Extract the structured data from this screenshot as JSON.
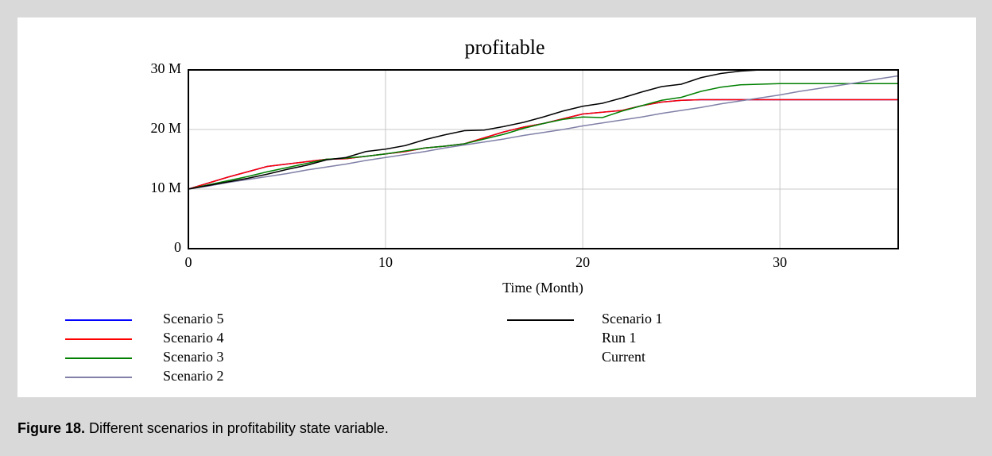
{
  "chart_data": {
    "type": "line",
    "title": "profitable",
    "x_label": "Time (Month)",
    "x": [
      0,
      1,
      2,
      3,
      4,
      5,
      6,
      7,
      8,
      9,
      10,
      11,
      12,
      13,
      14,
      15,
      16,
      17,
      18,
      19,
      20,
      21,
      22,
      23,
      24,
      25,
      26,
      27,
      28,
      29,
      30,
      31,
      32,
      33,
      34,
      35,
      36
    ],
    "xlim": [
      0,
      36
    ],
    "xticks": [
      0,
      10,
      20,
      30
    ],
    "ylim": [
      0,
      30
    ],
    "yticks": [
      0,
      {
        "value": 10,
        "label": "10 M"
      },
      {
        "value": 20,
        "label": "20 M"
      },
      {
        "value": 30,
        "label": "30 M"
      }
    ],
    "grid": true,
    "series": [
      {
        "name": "Scenario 5",
        "color": "#0000ff",
        "values": [
          10,
          11,
          12,
          12.9,
          13.8,
          14.2,
          14.6,
          15,
          15.1,
          15.5,
          15.9,
          16.3,
          16.9,
          17.2,
          17.6,
          18.6,
          19.6,
          20.4,
          21,
          21.8,
          22.6,
          22.9,
          23.2,
          24,
          24.6,
          24.9,
          25,
          25,
          25,
          25,
          25,
          25,
          25,
          25,
          25,
          25,
          25
        ]
      },
      {
        "name": "Scenario 4",
        "color": "#ff0000",
        "values": [
          10,
          11,
          12,
          12.9,
          13.8,
          14.2,
          14.6,
          15,
          15.1,
          15.5,
          15.9,
          16.3,
          16.9,
          17.2,
          17.6,
          18.6,
          19.6,
          20.4,
          21,
          21.8,
          22.6,
          22.9,
          23.2,
          24,
          24.6,
          24.9,
          25,
          25,
          25,
          25,
          25,
          25,
          25,
          25,
          25,
          25,
          25
        ]
      },
      {
        "name": "Scenario 3",
        "color": "#008000",
        "values": [
          10,
          10.7,
          11.4,
          12.1,
          12.9,
          13.6,
          14.3,
          15,
          15.2,
          15.5,
          15.9,
          16.4,
          16.9,
          17.2,
          17.6,
          18.4,
          19.2,
          20.2,
          21,
          21.7,
          22.1,
          22,
          23.1,
          24,
          24.9,
          25.4,
          26.4,
          27.1,
          27.5,
          27.6,
          27.7,
          27.7,
          27.7,
          27.7,
          27.7,
          27.7,
          27.7
        ]
      },
      {
        "name": "Scenario 2",
        "color": "#8080a8",
        "values": [
          10,
          10.5,
          11.1,
          11.6,
          12.1,
          12.6,
          13.2,
          13.7,
          14.2,
          14.8,
          15.3,
          15.8,
          16.3,
          16.9,
          17.4,
          17.9,
          18.4,
          19,
          19.5,
          20,
          20.6,
          21.1,
          21.6,
          22.1,
          22.7,
          23.2,
          23.7,
          24.3,
          24.8,
          25.3,
          25.8,
          26.4,
          26.9,
          27.4,
          27.9,
          28.5,
          29
        ]
      },
      {
        "name": "Scenario 1",
        "color": "#000000",
        "values": [
          10,
          10.6,
          11.2,
          11.8,
          12.5,
          13.3,
          14,
          14.9,
          15.3,
          16.3,
          16.7,
          17.3,
          18.3,
          19.1,
          19.8,
          19.9,
          20.5,
          21.2,
          22.1,
          23.1,
          23.9,
          24.4,
          25.3,
          26.3,
          27.2,
          27.6,
          28.7,
          29.4,
          29.8,
          30,
          30,
          30,
          30,
          30,
          30,
          30,
          30
        ]
      },
      {
        "name": "Run 1"
      },
      {
        "name": "Current"
      }
    ]
  },
  "caption": {
    "label": "Figure 18.",
    "text": "Different scenarios in profitability state variable."
  }
}
